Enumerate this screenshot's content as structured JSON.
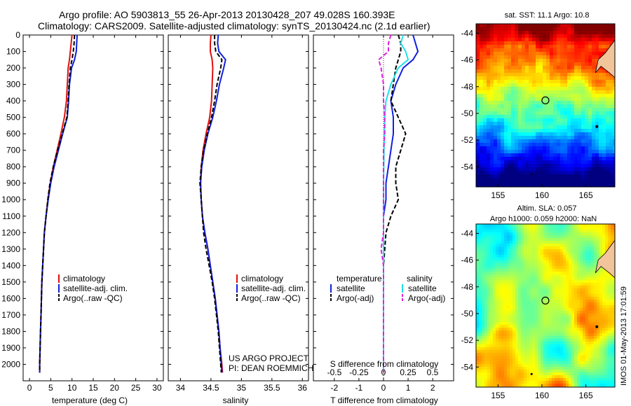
{
  "header": {
    "line1": "Argo profile: AO 5903813_55 26-Apr-2013 20130428_207 49.028S 160.393E",
    "line2": "Climatology: CARS2009. Satellite-adjusted climatology: synTS_20130424.nc (2.1d earlier)"
  },
  "credit": {
    "line1": "US ARGO PROJECT",
    "line2": "PI: DEAN ROEMMICH"
  },
  "timestamp": "IMOS 01-May-2013 17:01:59",
  "colors": {
    "red": "#e01010",
    "blue": "#1020e0",
    "black": "#000000",
    "cyan": "#20e0e8",
    "magenta": "#e020e0"
  },
  "chart_data": [
    {
      "type": "line",
      "id": "temperature",
      "xlabel": "temperature (deg C)",
      "ylabel": "",
      "xlim": [
        -1.5,
        31.5
      ],
      "ylim": [
        2100,
        0
      ],
      "xticks": [
        0,
        5,
        10,
        15,
        20,
        25,
        30
      ],
      "yticks": [
        0,
        100,
        200,
        300,
        400,
        500,
        600,
        700,
        800,
        900,
        1000,
        1100,
        1200,
        1300,
        1400,
        1500,
        1600,
        1700,
        1800,
        1900,
        2000
      ],
      "legend": {
        "position": "lower-right",
        "entries": [
          "climatology",
          "satellite-adj. clim.",
          "Argo(..raw -QC)"
        ]
      },
      "series": [
        {
          "name": "climatology",
          "color": "red",
          "dash": false,
          "y": [
            0,
            50,
            100,
            150,
            200,
            300,
            400,
            500,
            600,
            700,
            800,
            900,
            1000,
            1100,
            1200,
            1300,
            1400,
            1500,
            1600,
            1700,
            1800,
            1900,
            2000,
            2050
          ],
          "x": [
            10.0,
            9.8,
            9.6,
            9.4,
            9.1,
            8.9,
            8.7,
            8.2,
            7.4,
            6.5,
            5.6,
            4.9,
            4.3,
            3.9,
            3.5,
            3.3,
            3.1,
            2.9,
            2.8,
            2.7,
            2.6,
            2.5,
            2.4,
            2.4
          ]
        },
        {
          "name": "satellite-adj. clim.",
          "color": "blue",
          "dash": false,
          "y": [
            0,
            50,
            100,
            150,
            200,
            300,
            400,
            500,
            600,
            700,
            800,
            900,
            1000,
            1100,
            1200,
            1300,
            1400,
            1500,
            1600,
            1700,
            1800,
            1900,
            2000,
            2050
          ],
          "x": [
            11.2,
            11.1,
            11.0,
            10.6,
            9.9,
            9.4,
            9.2,
            8.9,
            7.8,
            6.8,
            5.8,
            5.0,
            4.4,
            3.9,
            3.5,
            3.3,
            3.1,
            2.9,
            2.8,
            2.7,
            2.6,
            2.5,
            2.4,
            2.4
          ]
        },
        {
          "name": "Argo(..raw -QC)",
          "color": "black",
          "dash": true,
          "y": [
            0,
            50,
            100,
            150,
            200,
            300,
            400,
            500,
            600,
            700,
            800,
            900,
            1000,
            1100,
            1200,
            1300,
            1400,
            1500,
            1600,
            1700,
            1800,
            1900,
            2000,
            2050
          ],
          "x": [
            10.6,
            10.5,
            10.3,
            10.0,
            9.6,
            9.3,
            9.1,
            8.8,
            7.7,
            6.6,
            5.6,
            4.8,
            4.3,
            3.9,
            3.5,
            3.3,
            3.1,
            2.9,
            2.8,
            2.7,
            2.6,
            2.5,
            2.4,
            2.4
          ]
        }
      ]
    },
    {
      "type": "line",
      "id": "salinity",
      "xlabel": "salinity",
      "ylabel": "",
      "xlim": [
        33.8,
        36.1
      ],
      "ylim": [
        2100,
        0
      ],
      "xticks": [
        34,
        34.5,
        35,
        35.5,
        36
      ],
      "legend": {
        "position": "lower-right",
        "entries": [
          "climatology",
          "satellite-adj. clim.",
          "Argo(..raw -QC)"
        ]
      },
      "series": [
        {
          "name": "climatology",
          "color": "red",
          "dash": false,
          "y": [
            0,
            50,
            100,
            150,
            200,
            300,
            400,
            500,
            600,
            700,
            800,
            900,
            1000,
            1100,
            1200,
            1300,
            1400,
            1500,
            1600,
            1700,
            1800,
            1900,
            2000,
            2050
          ],
          "x": [
            34.5,
            34.49,
            34.49,
            34.52,
            34.53,
            34.52,
            34.51,
            34.48,
            34.42,
            34.37,
            34.34,
            34.33,
            34.34,
            34.36,
            34.4,
            34.45,
            34.49,
            34.53,
            34.57,
            34.6,
            34.63,
            34.65,
            34.68,
            34.69
          ]
        },
        {
          "name": "satellite-adj. clim.",
          "color": "blue",
          "dash": false,
          "y": [
            0,
            50,
            100,
            150,
            200,
            300,
            400,
            500,
            600,
            700,
            800,
            900,
            1000,
            1100,
            1200,
            1300,
            1400,
            1500,
            1600,
            1700,
            1800,
            1900,
            2000,
            2050
          ],
          "x": [
            34.62,
            34.61,
            34.63,
            34.74,
            34.71,
            34.64,
            34.59,
            34.53,
            34.45,
            34.39,
            34.35,
            34.33,
            34.34,
            34.36,
            34.4,
            34.45,
            34.49,
            34.53,
            34.57,
            34.6,
            34.63,
            34.65,
            34.67,
            34.68
          ]
        },
        {
          "name": "Argo(..raw -QC)",
          "color": "black",
          "dash": true,
          "y": [
            0,
            50,
            100,
            150,
            200,
            300,
            400,
            500,
            600,
            700,
            800,
            900,
            1000,
            1100,
            1200,
            1300,
            1400,
            1500,
            1600,
            1700,
            1800,
            1900,
            2000,
            2050
          ],
          "x": [
            34.56,
            34.56,
            34.58,
            34.68,
            34.66,
            34.6,
            34.56,
            34.51,
            34.44,
            34.38,
            34.34,
            34.32,
            34.34,
            34.36,
            34.38,
            34.42,
            34.47,
            34.52,
            34.56,
            34.59,
            34.62,
            34.64,
            34.66,
            34.67
          ]
        }
      ]
    },
    {
      "type": "line",
      "id": "difference",
      "xlabel": "T difference from climatology",
      "xlabel_top": "S difference from climatology",
      "xlim": [
        -2.85,
        2.85
      ],
      "ylim": [
        2100,
        0
      ],
      "xticks": [
        -2,
        -1,
        0,
        1,
        2
      ],
      "xticks_s": [
        -0.5,
        -0.25,
        0,
        0.25,
        0.5
      ],
      "legend": {
        "position": "lower-center",
        "headers": [
          "temperature",
          "salinity"
        ],
        "entries": [
          "satellite",
          "Argo(-adj)",
          "satellite",
          "Argo(-adj)"
        ]
      },
      "series": [
        {
          "name": "temperature satellite",
          "color": "blue",
          "dash": false,
          "y": [
            0,
            50,
            100,
            150,
            200,
            300,
            400,
            500,
            600,
            700,
            800,
            900,
            1000,
            1100,
            1200,
            1300,
            1400,
            1500,
            1600,
            1700,
            1800,
            1900,
            2000,
            2050
          ],
          "x": [
            1.2,
            1.3,
            1.4,
            1.2,
            0.8,
            0.5,
            0.3,
            0.4,
            0.4,
            0.3,
            0.2,
            0.1,
            0.1,
            0.0,
            0.0,
            0.0,
            0.0,
            0.0,
            0.0,
            0.0,
            0.0,
            0.0,
            0.0,
            0.0
          ]
        },
        {
          "name": "temperature Argo(-adj)",
          "color": "black",
          "dash": true,
          "y": [
            0,
            50,
            100,
            150,
            200,
            300,
            400,
            500,
            600,
            700,
            800,
            900,
            1000,
            1100,
            1200,
            1300,
            1400,
            1500,
            1600,
            1700,
            1800,
            1900,
            2000,
            2050
          ],
          "x": [
            0.6,
            0.7,
            0.7,
            0.6,
            0.5,
            0.4,
            0.3,
            0.6,
            0.9,
            0.7,
            0.5,
            0.5,
            0.6,
            0.3,
            0.1,
            0.05,
            0.0,
            0.0,
            0.0,
            0.0,
            0.0,
            0.0,
            0.0,
            0.0
          ]
        },
        {
          "name": "salinity satellite",
          "color": "cyan",
          "dash": false,
          "y": [
            0,
            50,
            100,
            150,
            200,
            300,
            400,
            500,
            600,
            700,
            800,
            900,
            1000,
            1100,
            1200,
            1300,
            1400,
            1500,
            1600,
            1700,
            1800,
            1900,
            2000,
            2050
          ],
          "x": [
            0.8,
            0.7,
            0.9,
            1.0,
            0.6,
            0.3,
            0.1,
            0.05,
            0.03,
            0.02,
            0.01,
            0.0,
            0.0,
            0.0,
            0.0,
            0.0,
            0.0,
            0.0,
            0.0,
            0.0,
            0.0,
            0.0,
            0.0,
            0.0
          ]
        },
        {
          "name": "salinity Argo(-adj)",
          "color": "magenta",
          "dash": true,
          "y": [
            0,
            50,
            100,
            150,
            200,
            300,
            400,
            500,
            600,
            700,
            800,
            900,
            1000,
            1100,
            1200,
            1300,
            1400,
            1500,
            1600,
            1700,
            1800,
            1900,
            2000,
            2050
          ],
          "x": [
            0.3,
            0.2,
            0.2,
            -0.2,
            -0.1,
            0.0,
            0.0,
            0.05,
            0.05,
            0.0,
            0.0,
            0.0,
            0.0,
            0.0,
            0.0,
            -0.1,
            0.0,
            0.0,
            0.0,
            0.0,
            0.0,
            0.0,
            0.0,
            0.0
          ]
        }
      ]
    },
    {
      "type": "heatmap",
      "id": "sst-map",
      "title": "sat. SST: 11.1  Argo: 10.8",
      "xlim": [
        152.5,
        168.3
      ],
      "ylim": [
        -55.5,
        -43.3
      ],
      "xticks": [
        155,
        160,
        165
      ],
      "yticks": [
        -44,
        -46,
        -48,
        -50,
        -52,
        -54
      ],
      "float_position": [
        160.393,
        -49.028
      ]
    },
    {
      "type": "heatmap",
      "id": "sla-map",
      "title": "Altim. SLA: 0.057",
      "subtitle": "Argo h1000: 0.059 h2000: NaN",
      "xlim": [
        152.5,
        168.3
      ],
      "ylim": [
        -55.5,
        -43.3
      ],
      "xticks": [
        155,
        160,
        165
      ],
      "yticks": [
        -44,
        -46,
        -48,
        -50,
        -52,
        -54
      ],
      "float_position": [
        160.393,
        -49.028
      ]
    }
  ]
}
